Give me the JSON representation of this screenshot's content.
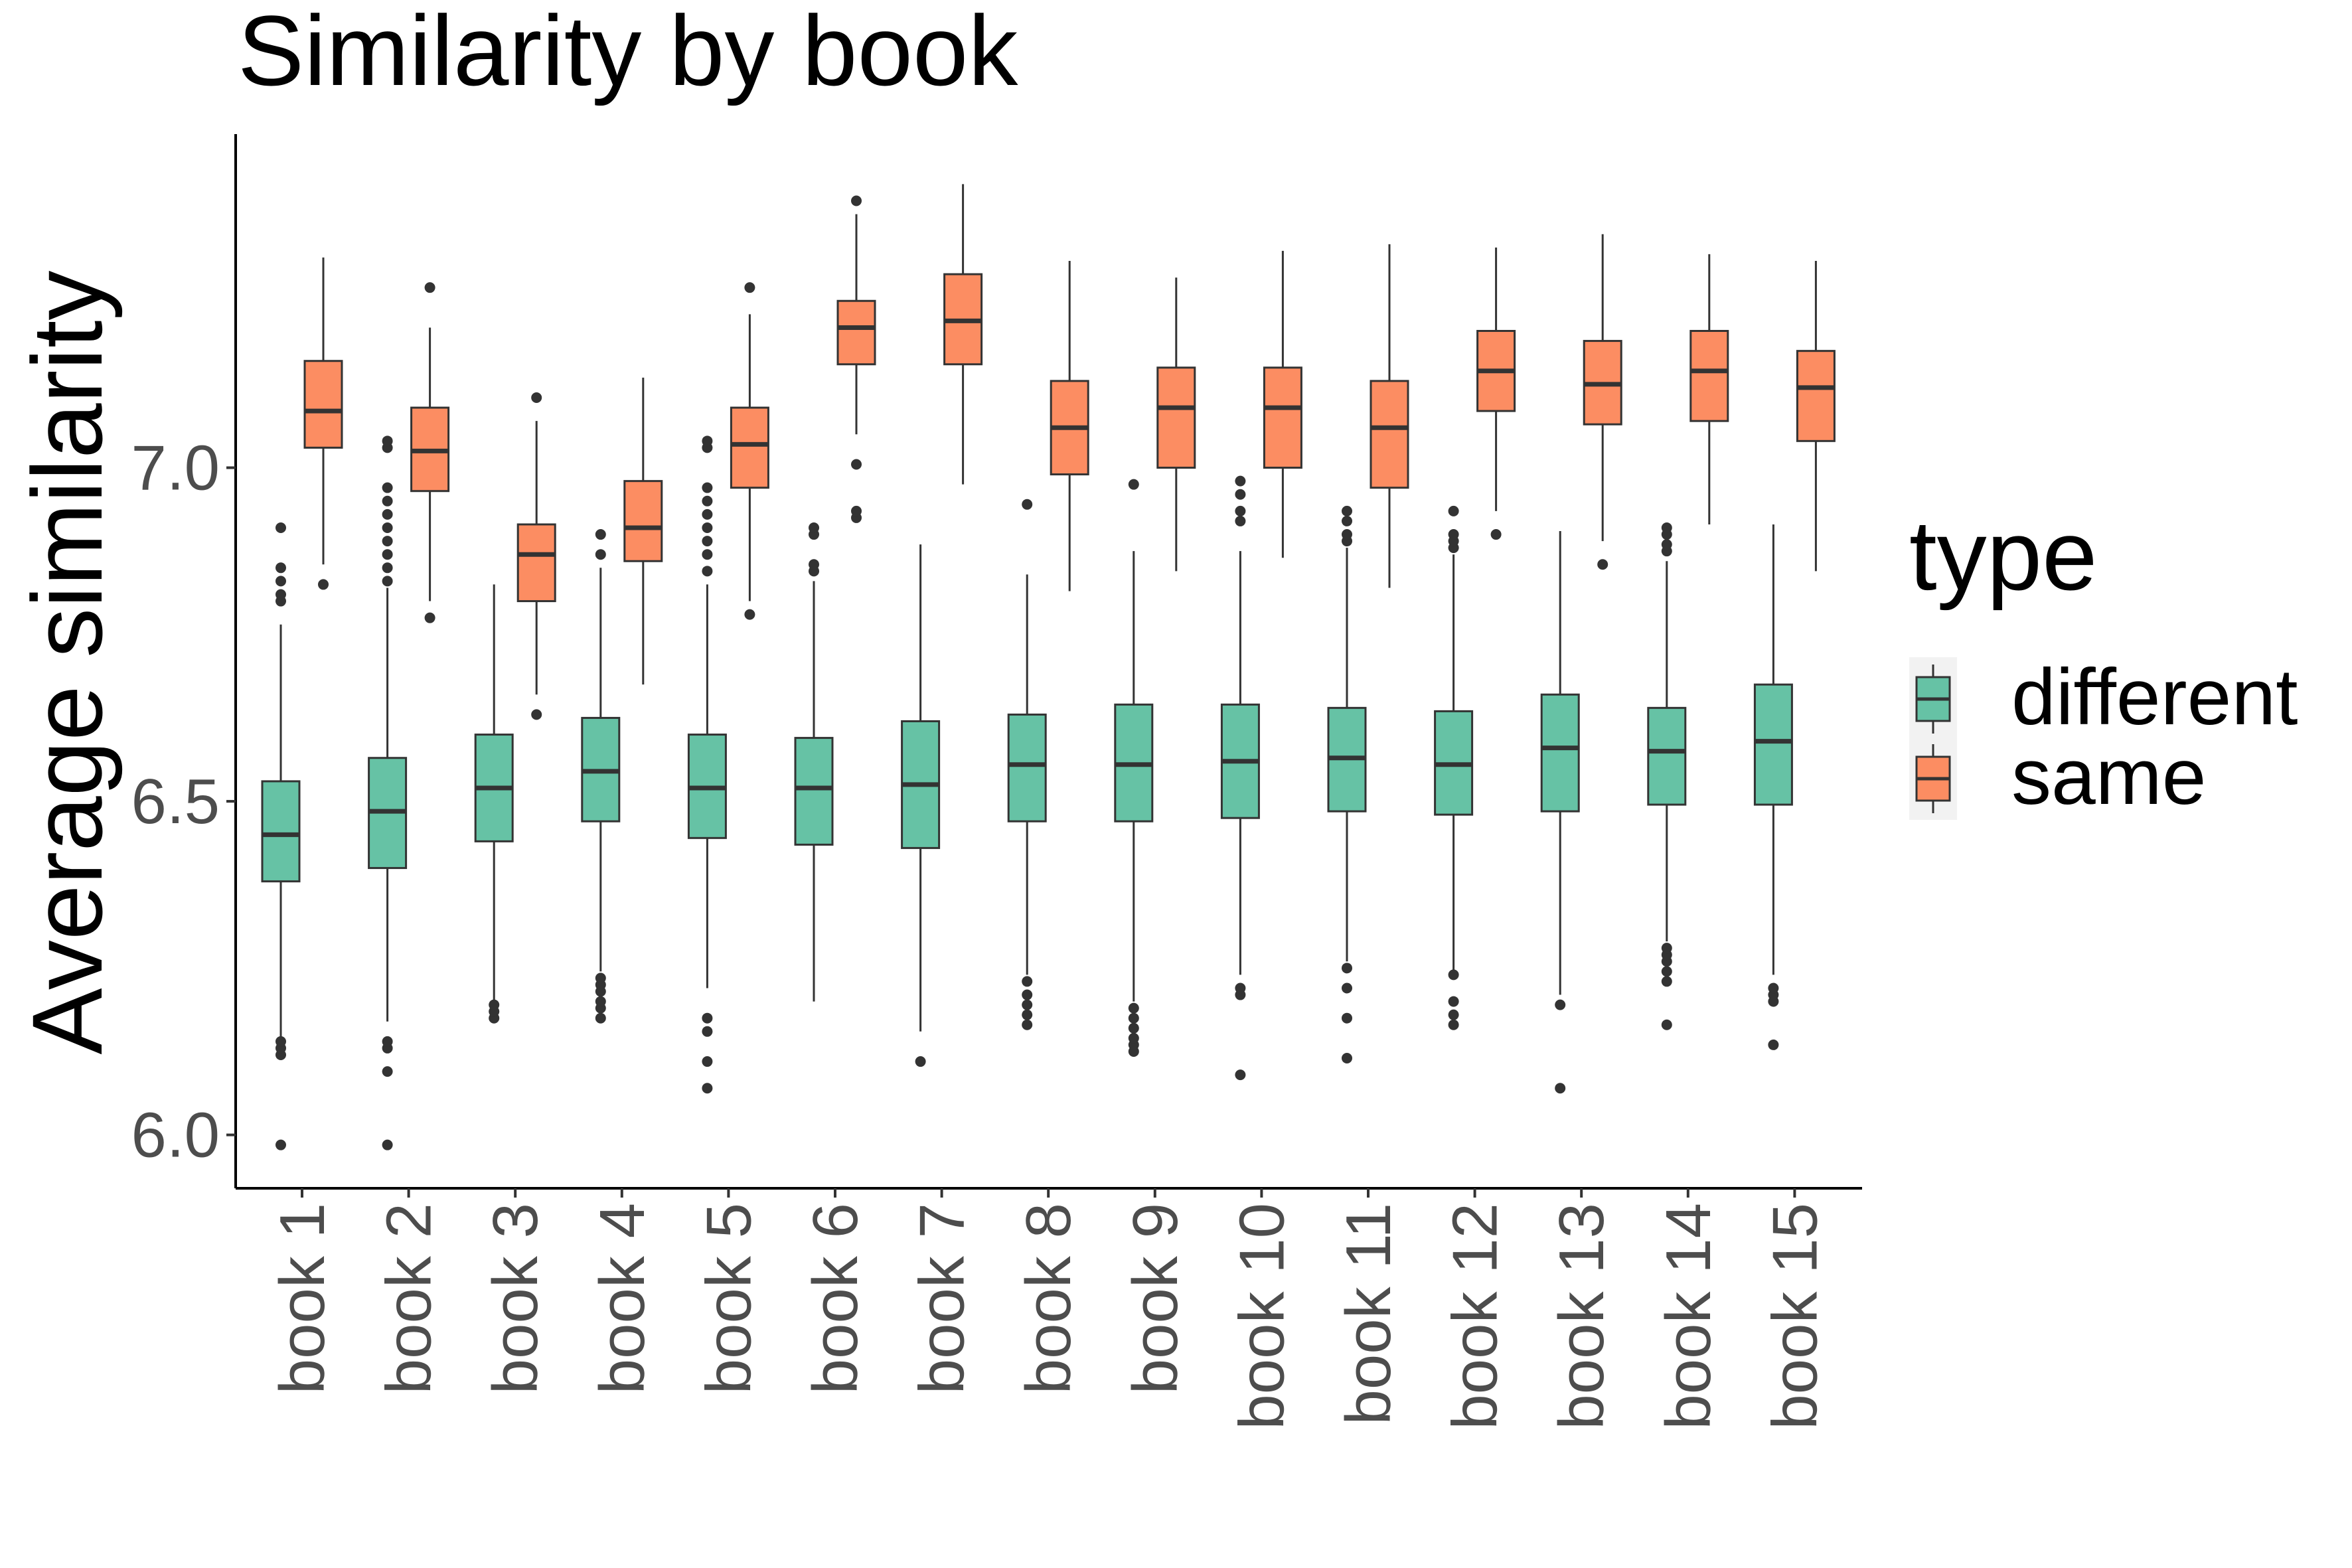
{
  "chart_data": {
    "type": "boxplot",
    "title": "Similarity by book",
    "xlabel": "",
    "ylabel": "Average similarity",
    "ylim": [
      5.92,
      7.5
    ],
    "yticks": [
      6.0,
      6.5,
      7.0
    ],
    "ytick_labels": [
      "6.0",
      "6.5",
      "7.0"
    ],
    "categories": [
      "book 1",
      "book 2",
      "book 3",
      "book 4",
      "book 5",
      "book 6",
      "book 7",
      "book 8",
      "book 9",
      "book 10",
      "book 11",
      "book 12",
      "book 13",
      "book 14",
      "book 15"
    ],
    "grid": false,
    "legend": {
      "title": "type",
      "position": "right",
      "entries": [
        {
          "label": "different",
          "color": "#66c2a5"
        },
        {
          "label": "same",
          "color": "#fc8d62"
        }
      ]
    },
    "series": [
      {
        "name": "different",
        "color": "#66c2a5",
        "boxes": [
          {
            "whisker_low": 6.145,
            "q1": 6.38,
            "median": 6.45,
            "q3": 6.53,
            "whisker_high": 6.765,
            "outliers": [
              5.985,
              6.12,
              6.13,
              6.14,
              6.8,
              6.81,
              6.83,
              6.85,
              6.91
            ]
          },
          {
            "whisker_low": 6.17,
            "q1": 6.4,
            "median": 6.485,
            "q3": 6.565,
            "whisker_high": 6.82,
            "outliers": [
              5.985,
              6.095,
              6.13,
              6.14,
              6.83,
              6.85,
              6.87,
              6.89,
              6.91,
              6.93,
              6.95,
              6.97,
              7.03,
              7.04
            ]
          },
          {
            "whisker_low": 6.2,
            "q1": 6.44,
            "median": 6.52,
            "q3": 6.6,
            "whisker_high": 6.825,
            "outliers": [
              6.175,
              6.185,
              6.195
            ]
          },
          {
            "whisker_low": 6.245,
            "q1": 6.47,
            "median": 6.545,
            "q3": 6.625,
            "whisker_high": 6.85,
            "outliers": [
              6.175,
              6.19,
              6.2,
              6.215,
              6.225,
              6.235,
              6.87,
              6.9
            ]
          },
          {
            "whisker_low": 6.22,
            "q1": 6.445,
            "median": 6.52,
            "q3": 6.6,
            "whisker_high": 6.825,
            "outliers": [
              6.07,
              6.11,
              6.155,
              6.175,
              6.845,
              6.87,
              6.89,
              6.91,
              6.93,
              6.95,
              6.97,
              7.03,
              7.04
            ]
          },
          {
            "whisker_low": 6.2,
            "q1": 6.435,
            "median": 6.52,
            "q3": 6.595,
            "whisker_high": 6.83,
            "outliers": [
              6.845,
              6.855,
              6.9,
              6.91
            ]
          },
          {
            "whisker_low": 6.155,
            "q1": 6.43,
            "median": 6.525,
            "q3": 6.62,
            "whisker_high": 6.885,
            "outliers": [
              6.11
            ]
          },
          {
            "whisker_low": 6.24,
            "q1": 6.47,
            "median": 6.555,
            "q3": 6.63,
            "whisker_high": 6.84,
            "outliers": [
              6.165,
              6.18,
              6.195,
              6.21,
              6.23,
              6.945
            ]
          },
          {
            "whisker_low": 6.2,
            "q1": 6.47,
            "median": 6.555,
            "q3": 6.645,
            "whisker_high": 6.875,
            "outliers": [
              6.125,
              6.135,
              6.145,
              6.16,
              6.175,
              6.19,
              6.975
            ]
          },
          {
            "whisker_low": 6.24,
            "q1": 6.475,
            "median": 6.56,
            "q3": 6.645,
            "whisker_high": 6.875,
            "outliers": [
              6.09,
              6.21,
              6.22,
              6.92,
              6.935,
              6.96,
              6.98
            ]
          },
          {
            "whisker_low": 6.26,
            "q1": 6.485,
            "median": 6.565,
            "q3": 6.64,
            "whisker_high": 6.88,
            "outliers": [
              6.115,
              6.175,
              6.22,
              6.25,
              6.89,
              6.9,
              6.92,
              6.935
            ]
          },
          {
            "whisker_low": 6.24,
            "q1": 6.48,
            "median": 6.555,
            "q3": 6.635,
            "whisker_high": 6.87,
            "outliers": [
              6.165,
              6.18,
              6.2,
              6.24,
              6.88,
              6.89,
              6.9,
              6.935
            ]
          },
          {
            "whisker_low": 6.21,
            "q1": 6.485,
            "median": 6.58,
            "q3": 6.66,
            "whisker_high": 6.905,
            "outliers": [
              6.07,
              6.195
            ]
          },
          {
            "whisker_low": 6.29,
            "q1": 6.495,
            "median": 6.575,
            "q3": 6.64,
            "whisker_high": 6.86,
            "outliers": [
              6.165,
              6.23,
              6.245,
              6.26,
              6.27,
              6.28,
              6.875,
              6.885,
              6.9,
              6.91
            ]
          },
          {
            "whisker_low": 6.24,
            "q1": 6.495,
            "median": 6.59,
            "q3": 6.675,
            "whisker_high": 6.915,
            "outliers": [
              6.135,
              6.2,
              6.21,
              6.22
            ]
          }
        ]
      },
      {
        "name": "same",
        "color": "#fc8d62",
        "boxes": [
          {
            "whisker_low": 6.855,
            "q1": 7.03,
            "median": 7.085,
            "q3": 7.16,
            "whisker_high": 7.315,
            "outliers": [
              6.825
            ]
          },
          {
            "whisker_low": 6.8,
            "q1": 6.965,
            "median": 7.025,
            "q3": 7.09,
            "whisker_high": 7.21,
            "outliers": [
              6.775,
              7.27
            ]
          },
          {
            "whisker_low": 6.66,
            "q1": 6.8,
            "median": 6.87,
            "q3": 6.915,
            "whisker_high": 7.07,
            "outliers": [
              6.63,
              7.105
            ]
          },
          {
            "whisker_low": 6.675,
            "q1": 6.86,
            "median": 6.91,
            "q3": 6.98,
            "whisker_high": 7.135,
            "outliers": []
          },
          {
            "whisker_low": 6.8,
            "q1": 6.97,
            "median": 7.035,
            "q3": 7.09,
            "whisker_high": 7.23,
            "outliers": [
              6.78,
              7.27
            ]
          },
          {
            "whisker_low": 7.05,
            "q1": 7.155,
            "median": 7.21,
            "q3": 7.25,
            "whisker_high": 7.38,
            "outliers": [
              6.925,
              6.935,
              7.005,
              7.4
            ]
          },
          {
            "whisker_low": 6.975,
            "q1": 7.155,
            "median": 7.22,
            "q3": 7.29,
            "whisker_high": 7.425,
            "outliers": []
          },
          {
            "whisker_low": 6.815,
            "q1": 6.99,
            "median": 7.06,
            "q3": 7.13,
            "whisker_high": 7.31,
            "outliers": []
          },
          {
            "whisker_low": 6.845,
            "q1": 7.0,
            "median": 7.09,
            "q3": 7.15,
            "whisker_high": 7.285,
            "outliers": []
          },
          {
            "whisker_low": 6.865,
            "q1": 7.0,
            "median": 7.09,
            "q3": 7.15,
            "whisker_high": 7.325,
            "outliers": []
          },
          {
            "whisker_low": 6.82,
            "q1": 6.97,
            "median": 7.06,
            "q3": 7.13,
            "whisker_high": 7.335,
            "outliers": []
          },
          {
            "whisker_low": 6.935,
            "q1": 7.085,
            "median": 7.145,
            "q3": 7.205,
            "whisker_high": 7.33,
            "outliers": [
              6.9
            ]
          },
          {
            "whisker_low": 6.89,
            "q1": 7.065,
            "median": 7.125,
            "q3": 7.19,
            "whisker_high": 7.35,
            "outliers": [
              6.855
            ]
          },
          {
            "whisker_low": 6.915,
            "q1": 7.07,
            "median": 7.145,
            "q3": 7.205,
            "whisker_high": 7.32,
            "outliers": []
          },
          {
            "whisker_low": 6.845,
            "q1": 7.04,
            "median": 7.12,
            "q3": 7.175,
            "whisker_high": 7.31,
            "outliers": []
          }
        ]
      }
    ]
  }
}
